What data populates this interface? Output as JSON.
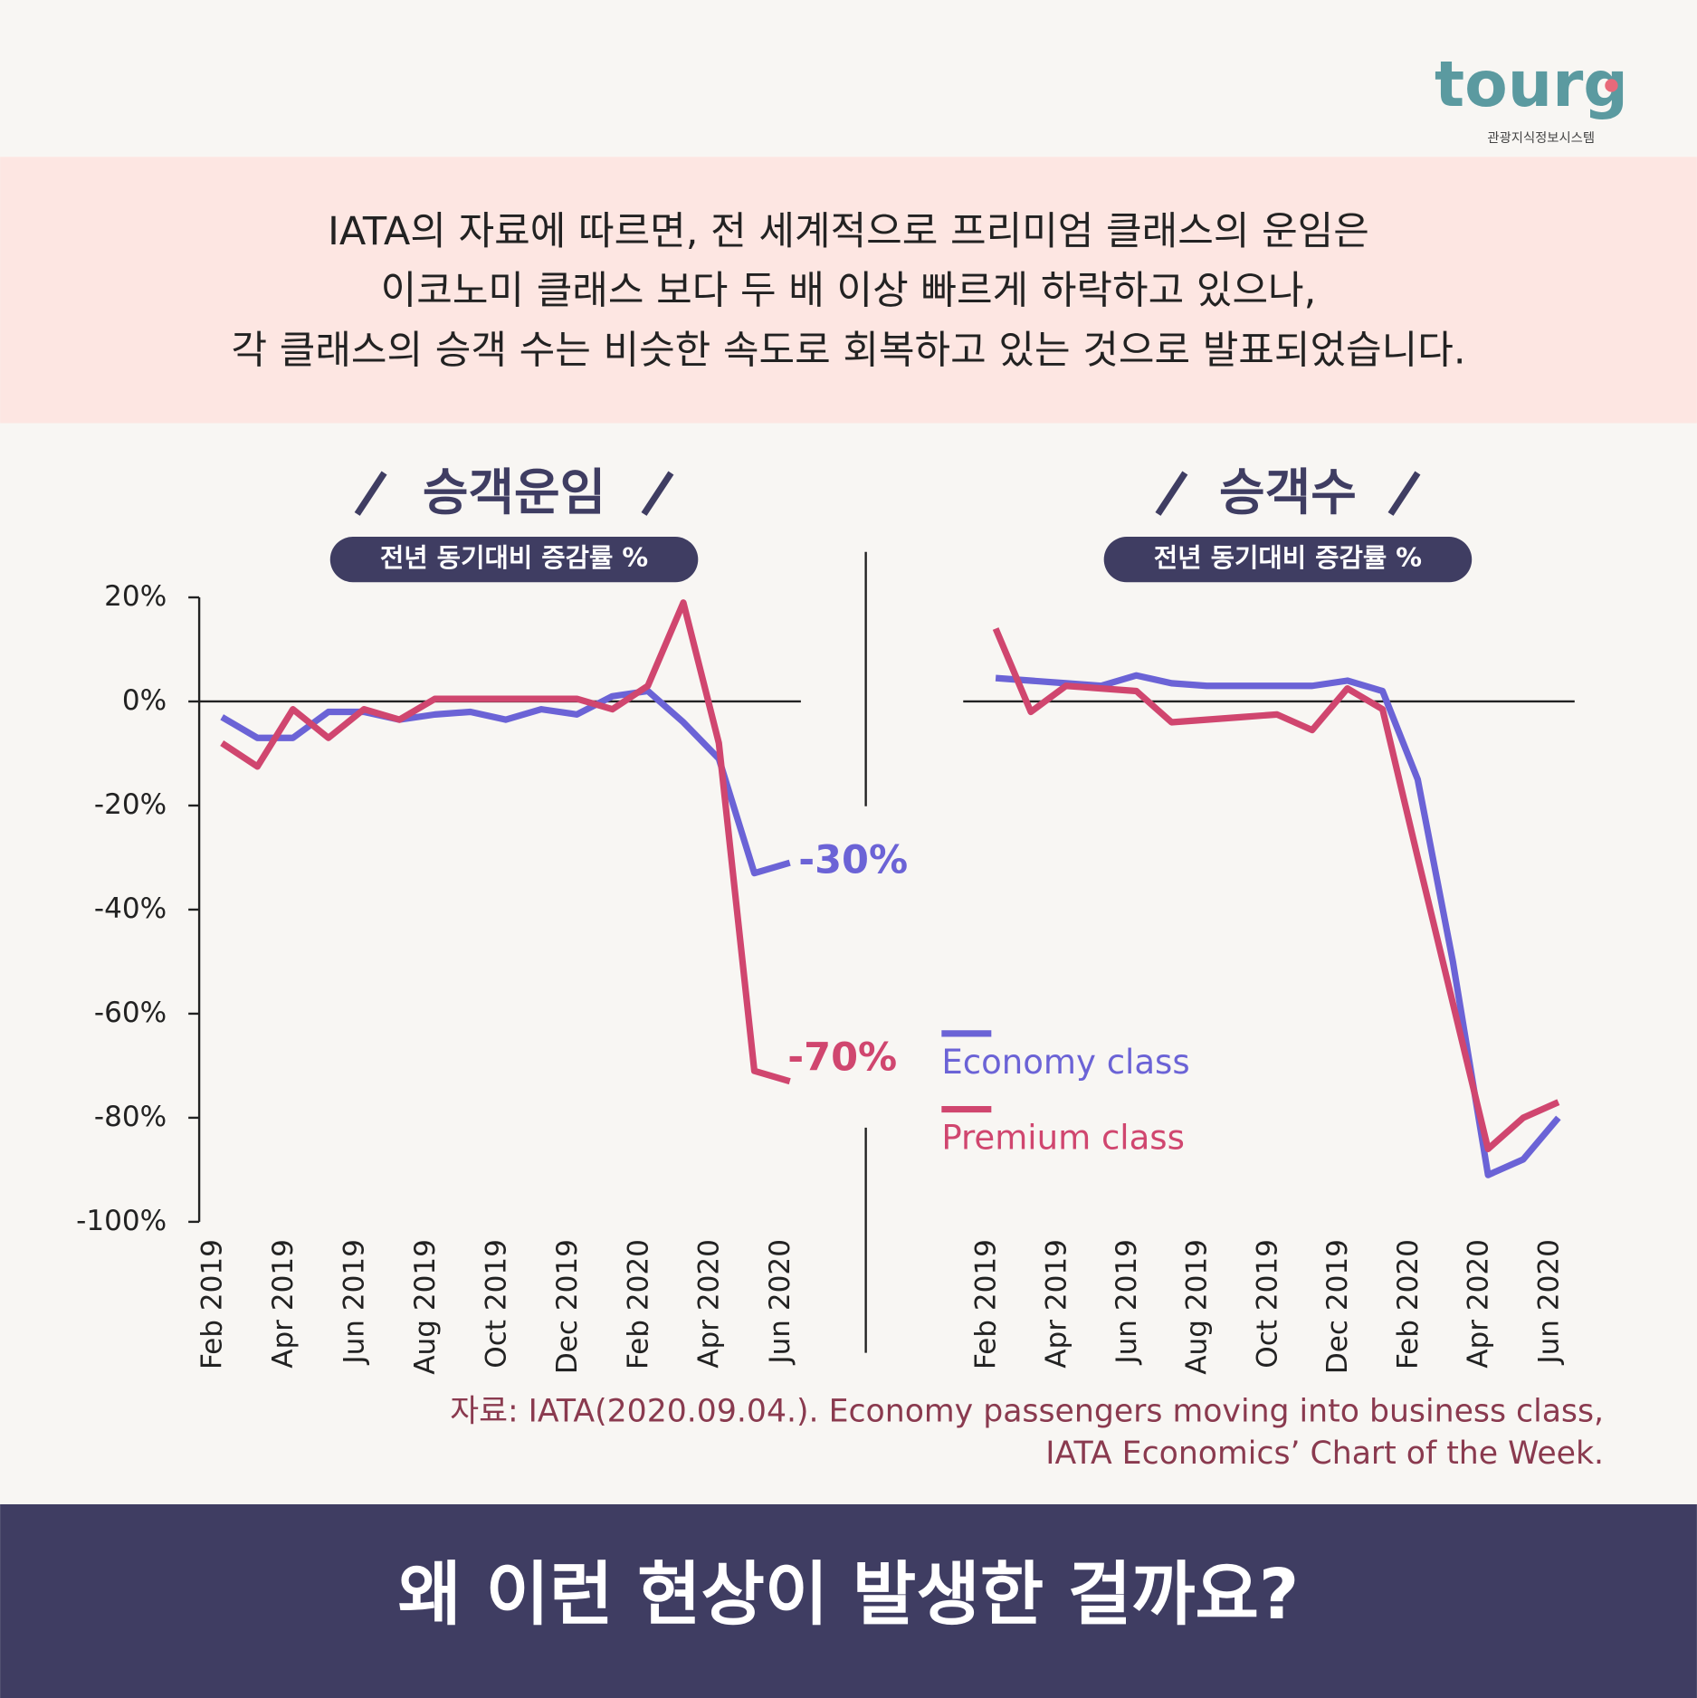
{
  "logo": {
    "name": "tourg",
    "tagline": "관광지식정보시스템"
  },
  "intro": [
    "IATA의 자료에 따르면, 전 세계적으로 프리미엄 클래스의 운임은",
    "이코노미 클래스 보다 두 배 이상 빠르게 하락하고 있으나,",
    "각 클래스의 승객 수는 비슷한 속도로 회복하고 있는 것으로 발표되었습니다."
  ],
  "chart_data": [
    {
      "type": "line",
      "title": "승객운임",
      "subtitle": "전년 동기대비 증감률 %",
      "categories": [
        "Feb 2019",
        null,
        "Apr 2019",
        null,
        "Jun 2019",
        null,
        "Aug 2019",
        null,
        "Oct 2019",
        null,
        "Dec 2019",
        null,
        "Feb 2020",
        null,
        "Apr 2020",
        null,
        "Jun 2020"
      ],
      "series": [
        {
          "name": "Economy class",
          "color": "#6b63d6",
          "values": [
            -3,
            -7,
            -7,
            -2,
            -2,
            -3.5,
            -2.5,
            -2,
            -3.5,
            -1.5,
            -2.5,
            1,
            2,
            -4,
            -11,
            -33,
            -31
          ]
        },
        {
          "name": "Premium class",
          "color": "#d0466f",
          "values": [
            -8,
            -12.5,
            -1.5,
            -7,
            -1.5,
            -3.5,
            0.5,
            0.5,
            0.5,
            0.5,
            0.5,
            -1.5,
            3,
            19,
            -8,
            -71,
            -73
          ]
        }
      ],
      "annotations": [
        {
          "text": "-30%",
          "series": 0
        },
        {
          "text": "-70%",
          "series": 1
        }
      ],
      "ylim": [
        -100,
        20
      ],
      "yticks": [
        {
          "value": 20,
          "label": "20%"
        },
        {
          "value": 0,
          "label": "0%"
        },
        {
          "value": -20,
          "label": "-20%"
        },
        {
          "value": -40,
          "label": "-40%"
        },
        {
          "value": -60,
          "label": "-60%"
        },
        {
          "value": -80,
          "label": "-80%"
        },
        {
          "value": -100,
          "label": "-100%"
        }
      ]
    },
    {
      "type": "line",
      "title": "승객수",
      "subtitle": "전년 동기대비 증감률 %",
      "categories": [
        "Feb 2019",
        null,
        "Apr 2019",
        null,
        "Jun 2019",
        null,
        "Aug 2019",
        null,
        "Oct 2019",
        null,
        "Dec 2019",
        null,
        "Feb 2020",
        null,
        "Apr 2020",
        null,
        "Jun 2020"
      ],
      "series": [
        {
          "name": "Economy class",
          "color": "#6b63d6",
          "values": [
            4.5,
            4,
            3.5,
            3,
            5,
            3.5,
            3,
            3,
            3,
            3,
            4,
            2,
            -15,
            -50,
            -91,
            -88,
            -80
          ]
        },
        {
          "name": "Premium class",
          "color": "#d0466f",
          "values": [
            14,
            -2,
            3,
            2.5,
            2,
            -4,
            -3.5,
            -3,
            -2.5,
            -5.5,
            2.5,
            -1.5,
            -30,
            -58,
            -86,
            -80,
            -77
          ]
        }
      ],
      "ylim": [
        -100,
        20
      ]
    }
  ],
  "source": [
    "자료: IATA(2020.09.04.). Economy passengers moving into business class,",
    "IATA Economics’ Chart of the Week."
  ],
  "footer": "왜 이런 현상이 발생한 걸까요?"
}
